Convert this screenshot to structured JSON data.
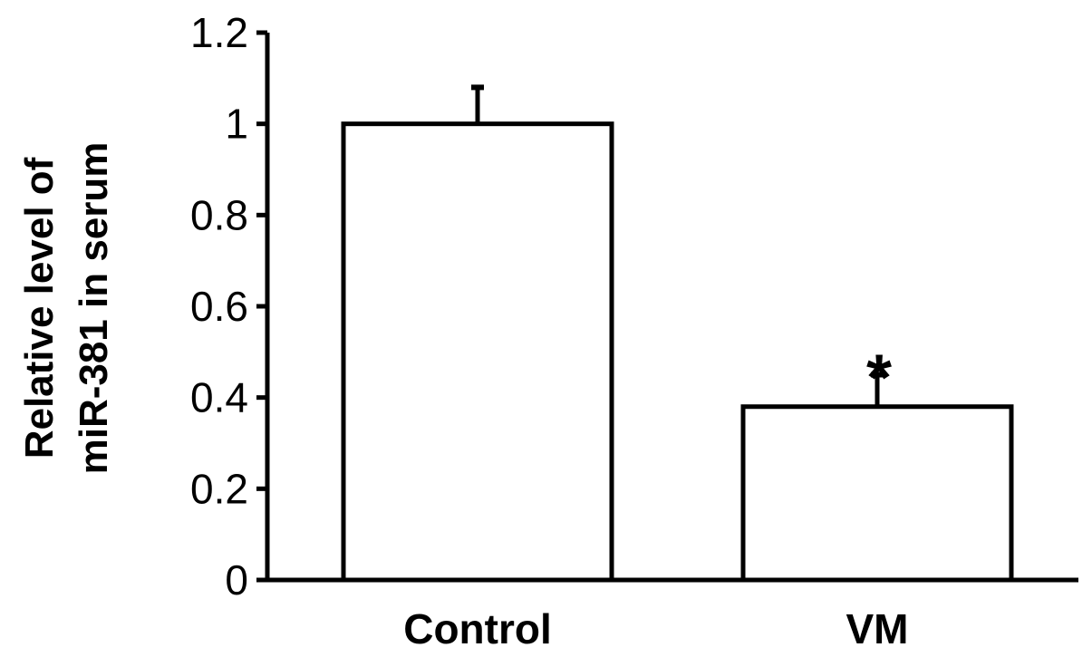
{
  "chart_data": {
    "type": "bar",
    "categories": [
      "Control",
      "VM"
    ],
    "values": [
      1.0,
      0.38
    ],
    "error_bars": [
      0.08,
      0.07
    ],
    "ylabel_lines": [
      "Relative level of",
      "miR-381 in serum"
    ],
    "ylim": [
      0,
      1.2
    ],
    "yticks": [
      "0",
      "0.2",
      "0.4",
      "0.6",
      "0.8",
      "1",
      "1.2"
    ],
    "annotations": [
      "",
      "*"
    ],
    "grid": false,
    "legend": "none",
    "colors": {
      "bar_fill": "#ffffff",
      "bar_stroke": "#000000"
    }
  }
}
